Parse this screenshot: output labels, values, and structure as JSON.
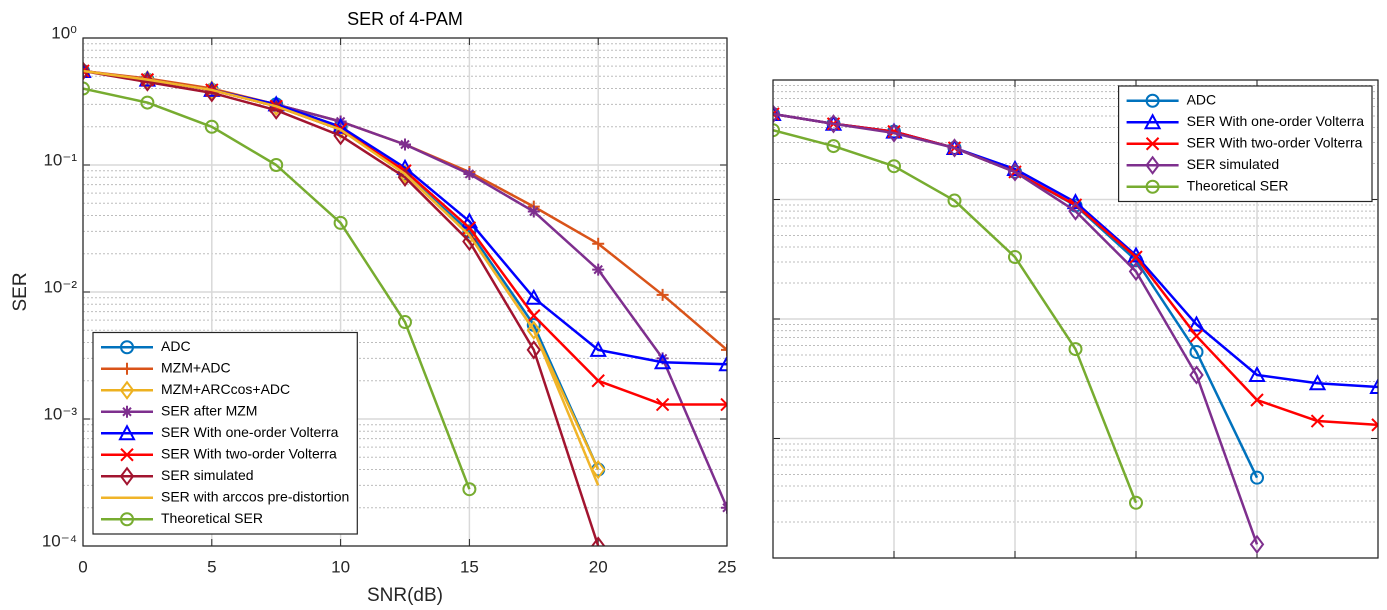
{
  "chart_data": [
    {
      "type": "line",
      "title": "SER of 4-PAM",
      "x_label": "SNR(dB)",
      "y_label": "SER",
      "log_y": true,
      "grid": true,
      "minor_grid": true,
      "tick_labels": true,
      "legend": "lower left",
      "xlim": [
        0,
        25
      ],
      "xticks": [
        0,
        5,
        10,
        15,
        20,
        25
      ],
      "ylim": [
        0.0001,
        1
      ],
      "yticks": [
        {
          "value": 0.0001,
          "label": "10⁻⁴"
        },
        {
          "value": 0.001,
          "label": "10⁻³"
        },
        {
          "value": 0.01,
          "label": "10⁻²"
        },
        {
          "value": 0.1,
          "label": "10⁻¹"
        },
        {
          "value": 1,
          "label": "10⁰"
        }
      ],
      "x": [
        0,
        2.5,
        5,
        7.5,
        10,
        12.5,
        15,
        17.5,
        20,
        22.5,
        25
      ],
      "series": [
        {
          "name": "ADC",
          "color": "#0072BD",
          "marker": "circle",
          "values": [
            0.55,
            0.47,
            0.39,
            0.3,
            0.2,
            0.085,
            0.03,
            0.0055,
            0.0004,
            null,
            null
          ]
        },
        {
          "name": "MZM+ADC",
          "color": "#D95319",
          "marker": "plus",
          "values": [
            0.55,
            0.48,
            0.4,
            0.3,
            0.22,
            0.145,
            0.088,
            0.047,
            0.024,
            0.0095,
            0.0035
          ]
        },
        {
          "name": "MZM+ARCcos+ADC",
          "color": "#EDB120",
          "marker": "diamond",
          "values": [
            0.55,
            0.47,
            0.39,
            0.29,
            0.19,
            0.085,
            0.028,
            0.005,
            0.0004,
            null,
            null
          ]
        },
        {
          "name": "SER after MZM",
          "color": "#7E2F8E",
          "marker": "asterisk",
          "values": [
            0.55,
            0.47,
            0.39,
            0.3,
            0.22,
            0.145,
            0.085,
            0.043,
            0.015,
            0.003,
            0.0002
          ]
        },
        {
          "name": "SER With one-order Volterra",
          "color": "#0000FF",
          "marker": "triangle",
          "values": [
            0.55,
            0.47,
            0.39,
            0.3,
            0.2,
            0.095,
            0.036,
            0.009,
            0.0035,
            0.0028,
            0.0027
          ]
        },
        {
          "name": "SER With two-order Volterra",
          "color": "#FF0000",
          "marker": "x",
          "values": [
            0.55,
            0.47,
            0.39,
            0.29,
            0.19,
            0.09,
            0.032,
            0.0065,
            0.002,
            0.0013,
            0.0013
          ]
        },
        {
          "name": "SER simulated",
          "color": "#A2142F",
          "marker": "diamond",
          "values": [
            0.55,
            0.45,
            0.37,
            0.27,
            0.17,
            0.08,
            0.025,
            0.0035,
            0.0001,
            null,
            null
          ]
        },
        {
          "name": "SER with arccos pre-distortion",
          "color": "#F0B429",
          "marker": "none",
          "values": [
            0.55,
            0.47,
            0.39,
            0.29,
            0.19,
            0.085,
            0.028,
            0.005,
            0.0003,
            null,
            null
          ]
        },
        {
          "name": "Theoretical SER",
          "color": "#77AC30",
          "marker": "circle",
          "values": [
            0.4,
            0.31,
            0.2,
            0.1,
            0.035,
            0.0058,
            0.00028,
            null,
            null,
            null,
            null
          ]
        }
      ]
    },
    {
      "type": "line",
      "log_y": true,
      "grid": true,
      "minor_grid": true,
      "tick_labels": false,
      "legend": "upper right",
      "xlim": [
        0,
        25
      ],
      "xticks": [
        0,
        5,
        10,
        15,
        20,
        25
      ],
      "ylim": [
        0.0001,
        1
      ],
      "yticks": [
        0.0001,
        0.001,
        0.01,
        0.1,
        1
      ],
      "x": [
        0,
        2.5,
        5,
        7.5,
        10,
        12.5,
        15,
        17.5,
        20,
        22.5,
        25
      ],
      "series": [
        {
          "name": "ADC",
          "color": "#0072BD",
          "marker": "circle",
          "values": [
            0.52,
            0.43,
            0.37,
            0.27,
            0.17,
            0.089,
            0.031,
            0.0053,
            0.00047,
            null,
            null
          ]
        },
        {
          "name": "SER With one-order Volterra",
          "color": "#0000FF",
          "marker": "triangle",
          "values": [
            0.52,
            0.43,
            0.37,
            0.27,
            0.18,
            0.095,
            0.034,
            0.009,
            0.0034,
            0.0029,
            0.0027
          ]
        },
        {
          "name": "SER With two-order Volterra",
          "color": "#FF0000",
          "marker": "x",
          "values": [
            0.52,
            0.43,
            0.37,
            0.27,
            0.17,
            0.09,
            0.033,
            0.0072,
            0.0021,
            0.0014,
            0.0013
          ]
        },
        {
          "name": "SER simulated",
          "color": "#7E2F8E",
          "marker": "diamond",
          "values": [
            0.52,
            0.43,
            0.36,
            0.27,
            0.17,
            0.08,
            0.025,
            0.0034,
            0.00013,
            null,
            null
          ]
        },
        {
          "name": "Theoretical SER",
          "color": "#77AC30",
          "marker": "circle",
          "values": [
            0.38,
            0.28,
            0.19,
            0.098,
            0.033,
            0.0056,
            0.00029,
            null,
            null,
            null,
            null
          ]
        }
      ]
    }
  ]
}
